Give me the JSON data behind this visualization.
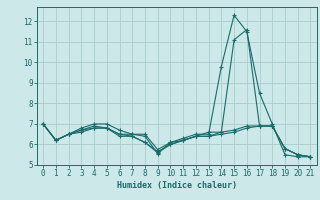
{
  "xlabel": "Humidex (Indice chaleur)",
  "ylabel": "",
  "background_color": "#cce8e8",
  "grid_color": "#aacccc",
  "line_color": "#1a6b6b",
  "xlim": [
    -0.5,
    21.5
  ],
  "ylim": [
    5.0,
    12.7
  ],
  "yticks": [
    5,
    6,
    7,
    8,
    9,
    10,
    11,
    12
  ],
  "xticks": [
    0,
    1,
    2,
    3,
    4,
    5,
    6,
    7,
    8,
    9,
    10,
    11,
    12,
    13,
    14,
    15,
    16,
    17,
    18,
    19,
    20,
    21
  ],
  "series": [
    [
      7.0,
      6.2,
      6.5,
      6.8,
      7.0,
      7.0,
      6.7,
      6.5,
      6.5,
      5.75,
      6.1,
      6.3,
      6.5,
      6.5,
      9.8,
      12.3,
      11.5,
      8.5,
      7.0,
      5.5,
      5.4,
      5.4
    ],
    [
      7.0,
      6.2,
      6.5,
      6.7,
      6.9,
      6.8,
      6.5,
      6.5,
      6.4,
      5.55,
      6.1,
      6.2,
      6.4,
      6.6,
      6.6,
      11.1,
      11.6,
      6.9,
      6.9,
      5.8,
      5.5,
      5.4
    ],
    [
      7.0,
      6.2,
      6.5,
      6.7,
      6.8,
      6.8,
      6.5,
      6.4,
      6.1,
      5.65,
      6.0,
      6.2,
      6.4,
      6.4,
      6.6,
      6.7,
      6.9,
      6.9,
      6.9,
      5.8,
      5.5,
      5.4
    ],
    [
      7.0,
      6.2,
      6.5,
      6.6,
      6.8,
      6.8,
      6.4,
      6.4,
      6.1,
      5.6,
      6.0,
      6.2,
      6.4,
      6.4,
      6.5,
      6.6,
      6.8,
      6.9,
      6.9,
      5.8,
      5.5,
      5.4
    ]
  ]
}
